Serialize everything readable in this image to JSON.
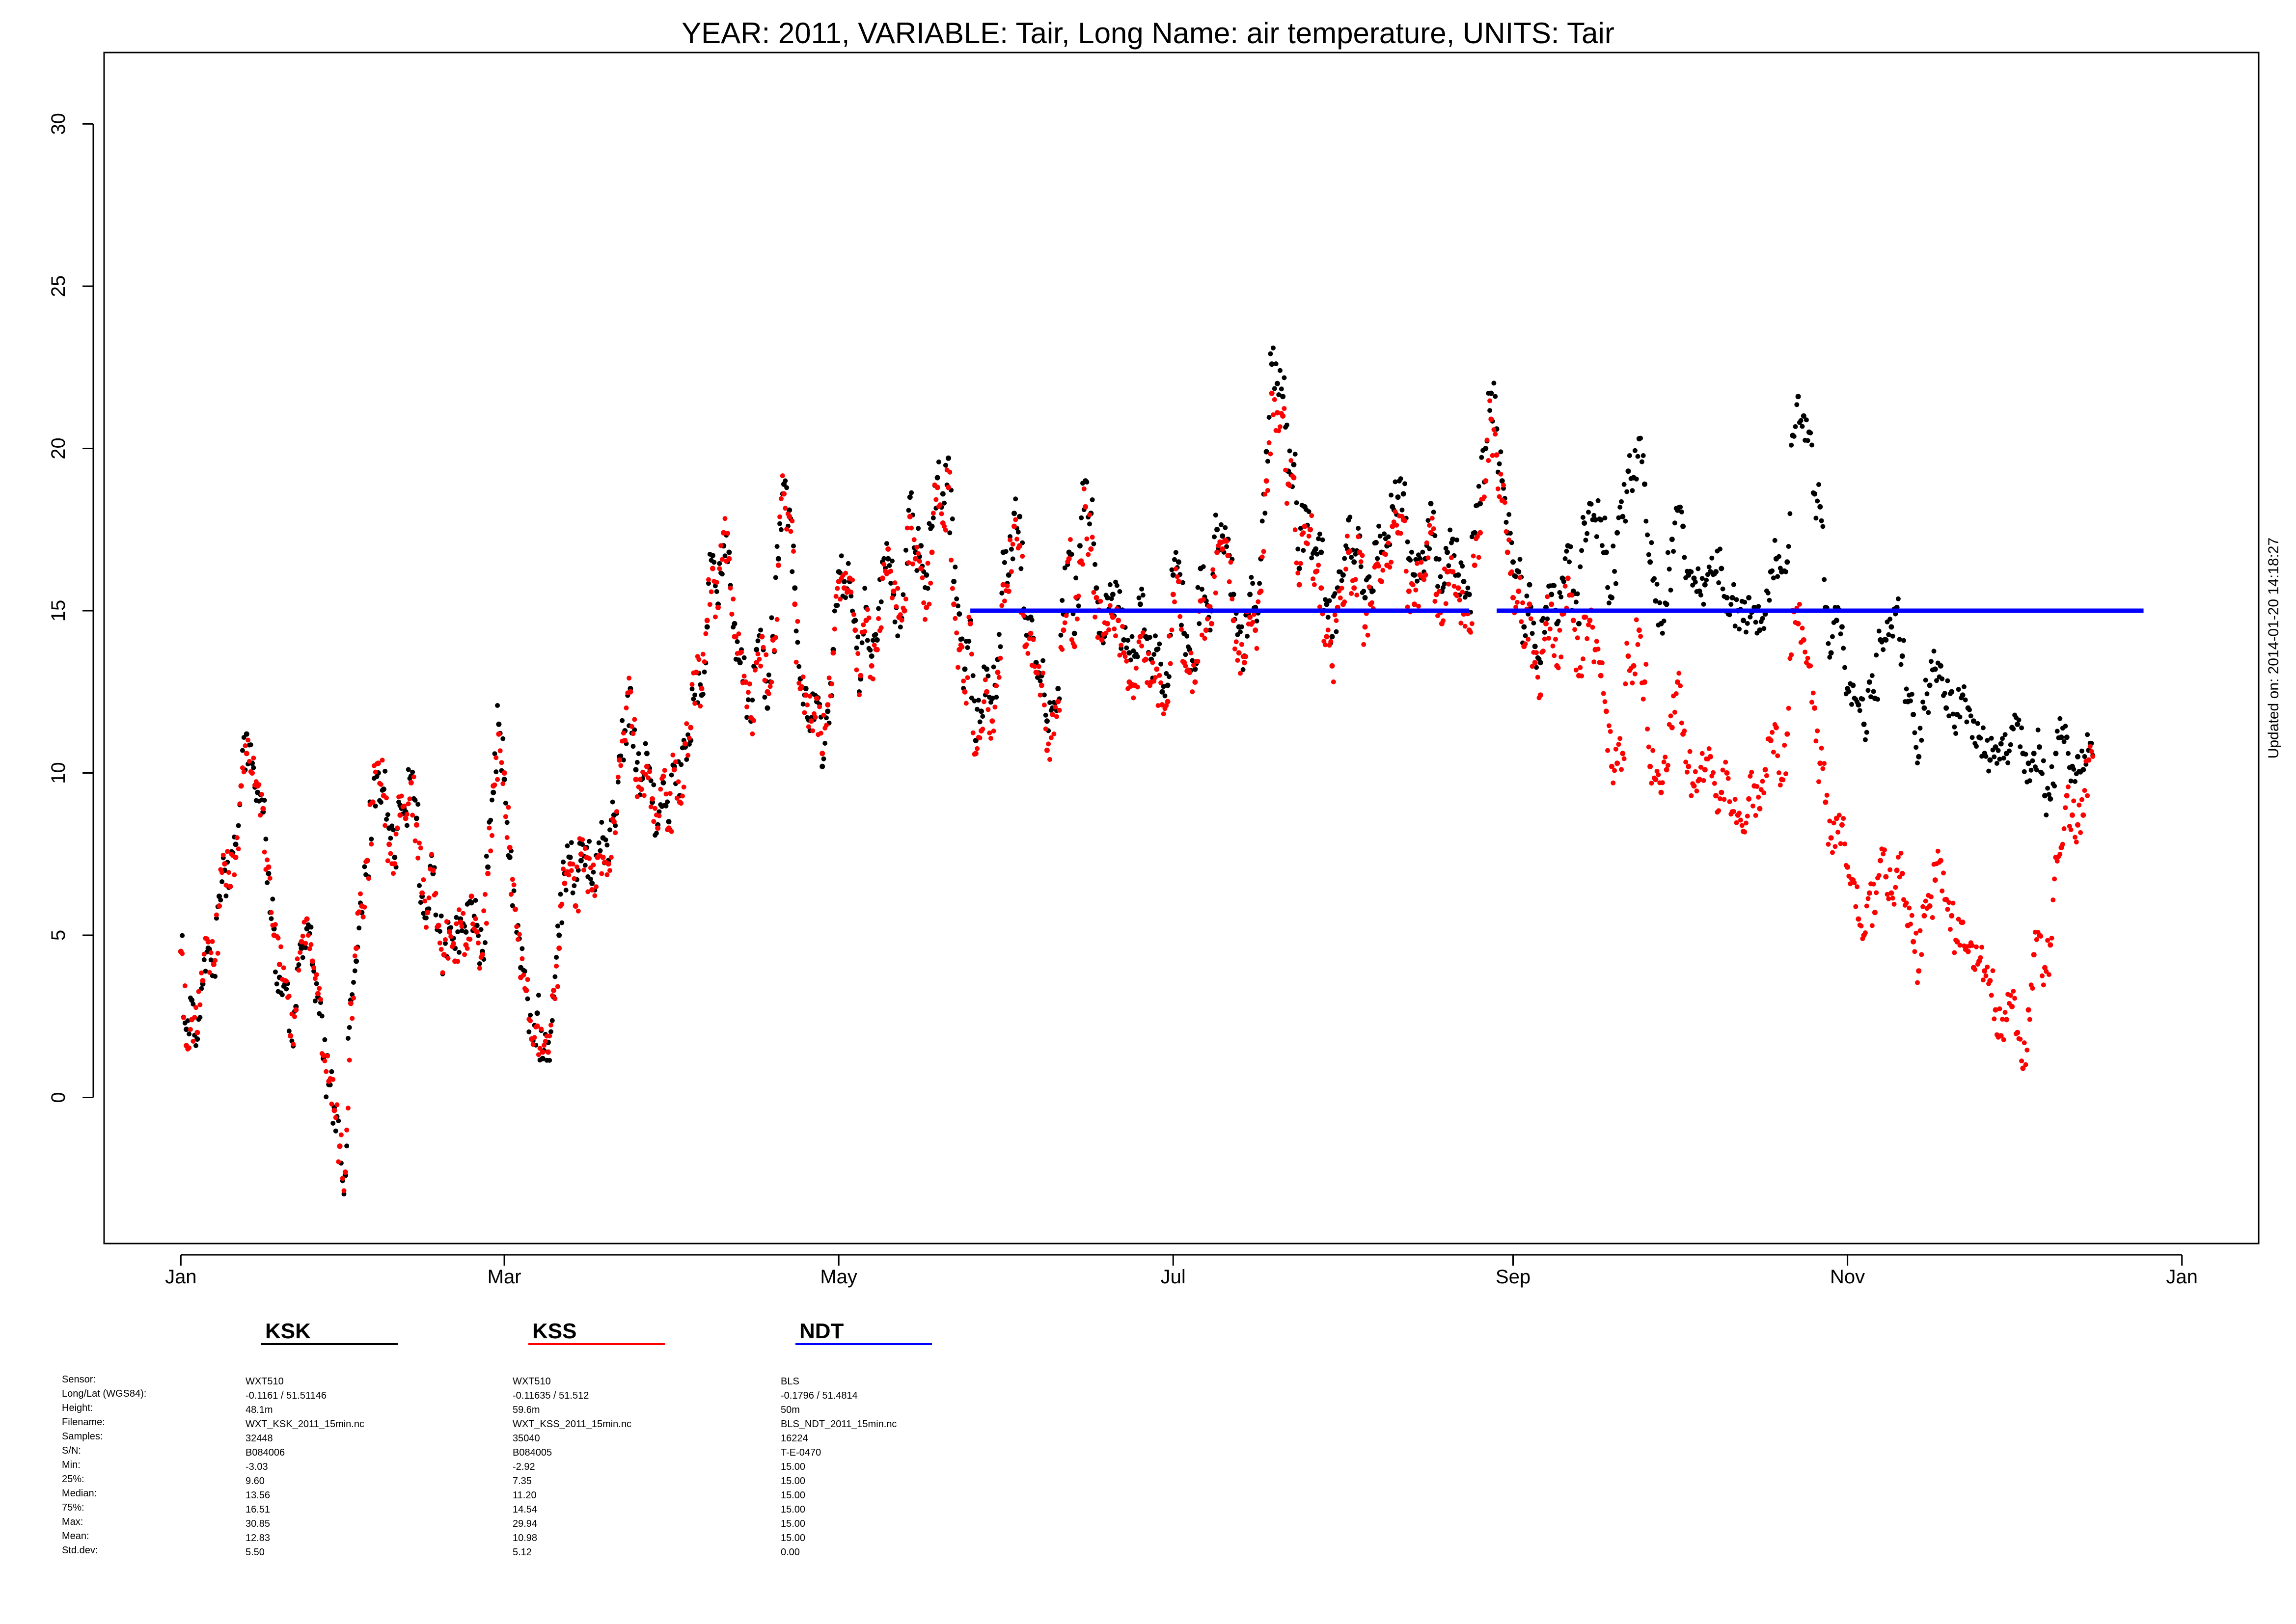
{
  "title": "YEAR: 2011, VARIABLE: Tair, Long Name: air  temperature, UNITS: Tair",
  "updated": "Updated on: 2014-01-20 14:18:27",
  "stat_labels": [
    "Sensor:",
    "Long/Lat (WGS84):",
    "Height:",
    "Filename:",
    "Samples:",
    "S/N:",
    "Min:",
    "25%:",
    "Median:",
    "75%:",
    "Max:",
    "Mean:",
    "Std.dev:"
  ],
  "stations": [
    {
      "name": "KSK",
      "color": "#000000",
      "stats": [
        "WXT510",
        "-0.1161 / 51.51146",
        "48.1m",
        "WXT_KSK_2011_15min.nc",
        "32448",
        "B084006",
        "-3.03",
        "9.60",
        "13.56",
        "16.51",
        "30.85",
        "12.83",
        "5.50"
      ]
    },
    {
      "name": "KSS",
      "color": "#ff0000",
      "stats": [
        "WXT510",
        "-0.11635 / 51.512",
        "59.6m",
        "WXT_KSS_2011_15min.nc",
        "35040",
        "B084005",
        "-2.92",
        "7.35",
        "11.20",
        "14.54",
        "29.94",
        "10.98",
        "5.12"
      ]
    },
    {
      "name": "NDT",
      "color": "#0000ff",
      "stats": [
        "BLS",
        "-0.1796 / 51.4814",
        "50m",
        "BLS_NDT_2011_15min.nc",
        "16224",
        "T-E-0470",
        "15.00",
        "15.00",
        "15.00",
        "15.00",
        "15.00",
        "15.00",
        "0.00"
      ]
    }
  ],
  "chart_data": {
    "type": "scatter",
    "title": "YEAR: 2011, VARIABLE: Tair, Long Name: air  temperature, UNITS: Tair",
    "xlabel": "",
    "ylabel": "",
    "x_ticks": [
      "Jan",
      "Mar",
      "May",
      "Jul",
      "Sep",
      "Nov",
      "Jan"
    ],
    "x_tick_days": [
      0,
      59,
      120,
      181,
      243,
      304,
      365
    ],
    "y_ticks": [
      0,
      5,
      10,
      15,
      20,
      25,
      30
    ],
    "xlim_days": [
      -14,
      379
    ],
    "ylim": [
      -4.5,
      32.2
    ],
    "grid": false,
    "legend": "bottom",
    "series": [
      {
        "name": "KSK",
        "color": "#000000",
        "x_start_day": 0,
        "x_step_days": 1,
        "y": [
          4.5,
          2.1,
          3.0,
          1.8,
          3.5,
          4.6,
          4.2,
          6.2,
          7.0,
          6.5,
          7.8,
          9.6,
          11.2,
          10.3,
          9.4,
          8.8,
          6.9,
          5.2,
          3.7,
          3.5,
          1.9,
          2.8,
          4.6,
          5.2,
          4.1,
          3.1,
          1.2,
          0.4,
          -0.3,
          -1.5,
          -2.4,
          3.0,
          4.2,
          5.7,
          7.3,
          9.1,
          10.0,
          9.5,
          8.3,
          7.4,
          9.0,
          8.8,
          9.9,
          8.6,
          6.2,
          5.8,
          6.9,
          5.3,
          4.4,
          5.2,
          4.6,
          5.5,
          5.1,
          6.0,
          5.3,
          4.5,
          7.1,
          9.4,
          11.5,
          9.8,
          7.4,
          5.8,
          4.0,
          3.3,
          1.8,
          2.6,
          1.2,
          1.7,
          3.1,
          5.0,
          6.9,
          7.4,
          5.9,
          7.3,
          7.7,
          6.6,
          7.4,
          8.0,
          7.3,
          8.7,
          10.5,
          11.3,
          12.6,
          10.1,
          9.8,
          10.6,
          9.1,
          8.4,
          9.7,
          8.5,
          10.2,
          9.3,
          10.8,
          11.0,
          13.1,
          12.4,
          14.5,
          16.7,
          15.2,
          17.0,
          16.8,
          14.6,
          13.4,
          12.8,
          11.6,
          13.8,
          14.2,
          12.0,
          14.2,
          16.6,
          18.9,
          18.1,
          15.7,
          12.9,
          12.6,
          11.7,
          12.2,
          10.2,
          11.9,
          13.8,
          16.2,
          15.9,
          15.9,
          14.7,
          12.9,
          15.1,
          13.6,
          14.1,
          16.5,
          16.6,
          15.5,
          14.8,
          15.0,
          18.5,
          16.8,
          17.0,
          16.1,
          17.6,
          19.1,
          18.6,
          19.7,
          15.9,
          14.9,
          13.2,
          14.7,
          11.0,
          11.9,
          13.2,
          12.3,
          13.5,
          16.8,
          16.1,
          18.0,
          17.9,
          14.8,
          14.8,
          13.4,
          13.0,
          11.6,
          12.0,
          12.6,
          14.9,
          16.8,
          14.3,
          17.0,
          19.0,
          18.0,
          15.7,
          14.2,
          15.4,
          15.5,
          15.1,
          14.1,
          13.7,
          13.6,
          15.2,
          14.2,
          13.5,
          13.8,
          12.5,
          12.7,
          16.1,
          16.5,
          14.3,
          13.8,
          13.2,
          16.3,
          15.3,
          15.0,
          17.5,
          17.3,
          17.2,
          15.5,
          14.5,
          13.6,
          15.5,
          15.1,
          16.6,
          19.9,
          22.6,
          22.0,
          21.6,
          19.3,
          19.5,
          16.3,
          18.2,
          17.5,
          16.9,
          16.8,
          15.2,
          14.2,
          15.7,
          16.1,
          17.8,
          16.5,
          17.3,
          15.4,
          15.7,
          17.1,
          16.8,
          17.0,
          18.2,
          18.5,
          18.6,
          16.6,
          16.1,
          16.6,
          16.6,
          18.3,
          16.6,
          15.6,
          16.8,
          17.2,
          16.1,
          15.9,
          15.5,
          17.4,
          18.3,
          20.0,
          21.7,
          20.6,
          19.0,
          17.4,
          16.5,
          16.2,
          14.5,
          15.8,
          13.9,
          13.4,
          15.1,
          15.5,
          14.6,
          16.0,
          17.0,
          15.6,
          14.6,
          17.7,
          18.3,
          17.8,
          17.8,
          16.8,
          15.4,
          17.4,
          17.9,
          19.3,
          19.1,
          20.3,
          18.9,
          16.5,
          15.3,
          14.6,
          15.2,
          17.2,
          18.1,
          17.6,
          16.1,
          16.0,
          15.6,
          15.8,
          16.2,
          16.2,
          16.3,
          15.4,
          15.4,
          15.0,
          14.7,
          15.4,
          15.1,
          14.4,
          14.9,
          16.2,
          16.6,
          16.2,
          16.5,
          20.4,
          21.6,
          21.0,
          20.5,
          18.6,
          18.2,
          15.1,
          13.7,
          14.7,
          14.5,
          12.6,
          12.7,
          12.1,
          11.5,
          12.8,
          12.3,
          14.1,
          14.1,
          14.5,
          15.1,
          13.6,
          12.2,
          11.8,
          10.5,
          12.0,
          12.7,
          13.2,
          13.3,
          12.0,
          12.5,
          11.8,
          12.4,
          12.0,
          11.6,
          11.1,
          10.6,
          10.4,
          10.8,
          10.9,
          10.6,
          11.4,
          11.5,
          10.6,
          10.3,
          10.6,
          10.8,
          9.3,
          9.2,
          10.6,
          11.1,
          11.1,
          10.2,
          10.5,
          10.1,
          10.7
        ]
      },
      {
        "name": "KSS",
        "color": "#ff0000",
        "x_start_day": 0,
        "x_step_days": 1,
        "y": [
          4.5,
          1.6,
          2.4,
          2.0,
          3.6,
          4.8,
          4.1,
          5.9,
          7.2,
          6.5,
          7.4,
          9.6,
          10.6,
          10.0,
          9.6,
          8.9,
          7.1,
          5.0,
          4.1,
          3.6,
          1.9,
          2.7,
          4.8,
          5.5,
          4.2,
          3.2,
          1.3,
          0.5,
          -0.4,
          -1.5,
          -2.3,
          2.9,
          4.6,
          5.9,
          7.3,
          9.1,
          10.3,
          9.3,
          7.8,
          7.2,
          8.7,
          8.6,
          9.7,
          8.4,
          6.3,
          5.7,
          7.0,
          5.3,
          4.4,
          5.1,
          4.2,
          5.4,
          4.7,
          6.2,
          5.1,
          4.4,
          6.9,
          9.6,
          11.2,
          10.0,
          7.7,
          5.8,
          3.7,
          3.3,
          1.8,
          2.2,
          1.4,
          1.4,
          3.3,
          4.6,
          6.6,
          7.2,
          5.9,
          7.5,
          7.4,
          6.4,
          7.4,
          7.4,
          7.2,
          8.5,
          10.4,
          11.0,
          12.5,
          9.8,
          9.5,
          10.2,
          9.2,
          8.3,
          9.9,
          8.3,
          10.1,
          9.1,
          10.9,
          11.4,
          13.1,
          12.6,
          14.7,
          16.3,
          15.1,
          17.4,
          16.6,
          14.2,
          13.7,
          12.8,
          11.7,
          13.4,
          14.2,
          12.5,
          14.1,
          16.4,
          18.6,
          17.9,
          15.2,
          12.6,
          12.4,
          11.6,
          12.3,
          10.6,
          12.1,
          13.7,
          15.9,
          15.7,
          16.0,
          14.4,
          13.0,
          14.7,
          13.3,
          13.8,
          16.0,
          16.9,
          15.6,
          14.8,
          15.0,
          17.9,
          16.6,
          16.3,
          15.1,
          16.8,
          18.8,
          17.7,
          18.8,
          15.2,
          13.8,
          12.5,
          14.6,
          10.6,
          11.3,
          12.5,
          11.6,
          13.1,
          15.8,
          15.6,
          17.6,
          17.0,
          13.9,
          14.3,
          13.1,
          12.7,
          10.7,
          11.8,
          12.2,
          14.4,
          16.6,
          13.9,
          16.5,
          18.2,
          16.9,
          15.4,
          14.1,
          14.6,
          14.8,
          14.7,
          13.7,
          12.8,
          12.7,
          14.2,
          13.5,
          12.8,
          13.2,
          12.1,
          12.2,
          15.5,
          15.9,
          13.4,
          13.1,
          12.8,
          15.3,
          14.4,
          14.6,
          16.8,
          16.9,
          16.7,
          14.7,
          13.7,
          13.4,
          14.8,
          14.4,
          15.6,
          19.0,
          21.7,
          21.1,
          21.0,
          18.9,
          19.1,
          15.8,
          17.6,
          17.5,
          16.2,
          15.7,
          14.2,
          13.3,
          15.1,
          15.2,
          16.8,
          15.7,
          16.8,
          14.5,
          15.2,
          16.4,
          15.9,
          16.4,
          17.6,
          17.4,
          17.8,
          15.6,
          15.2,
          16.1,
          16.1,
          17.4,
          15.5,
          14.6,
          16.2,
          16.2,
          15.7,
          14.9,
          14.4,
          16.4,
          17.4,
          19.0,
          20.9,
          19.8,
          18.4,
          16.8,
          15.4,
          15.6,
          13.9,
          15.2,
          13.4,
          12.4,
          14.6,
          15.2,
          13.3,
          14.9,
          16.0,
          14.7,
          13.0,
          14.8,
          14.7,
          13.8,
          13.0,
          11.9,
          10.2,
          10.3,
          10.6,
          13.6,
          13.3,
          14.4,
          12.8,
          10.2,
          9.8,
          9.4,
          10.1,
          11.4,
          12.8,
          11.2,
          10.2,
          9.6,
          9.8,
          10.1,
          10.5,
          9.3,
          9.4,
          10.0,
          8.8,
          8.7,
          8.2,
          9.2,
          9.6,
          8.9,
          10.1,
          11.0,
          11.4,
          9.8,
          11.2,
          15.0,
          14.6,
          14.1,
          13.3,
          12.0,
          10.3,
          9.1,
          8.0,
          8.6,
          8.4,
          7.1,
          6.7,
          5.5,
          5.0,
          6.3,
          5.7,
          7.3,
          6.8,
          6.3,
          7.0,
          6.9,
          5.3,
          4.8,
          3.9,
          5.6,
          5.9,
          6.7,
          7.3,
          6.1,
          5.6,
          4.8,
          5.4,
          4.5,
          4.0,
          4.2,
          3.9,
          3.6,
          2.7,
          1.9,
          2.4,
          2.8,
          2.0,
          0.9,
          2.7,
          4.4,
          5.0,
          4.0,
          4.7,
          7.4,
          7.7,
          9.3,
          8.7,
          8.4,
          8.7,
          10.4
        ]
      },
      {
        "name": "NDT",
        "color": "#0000ff",
        "segments": [
          [
            144,
            235,
            15.0
          ],
          [
            240,
            358,
            15.0
          ]
        ]
      }
    ]
  }
}
